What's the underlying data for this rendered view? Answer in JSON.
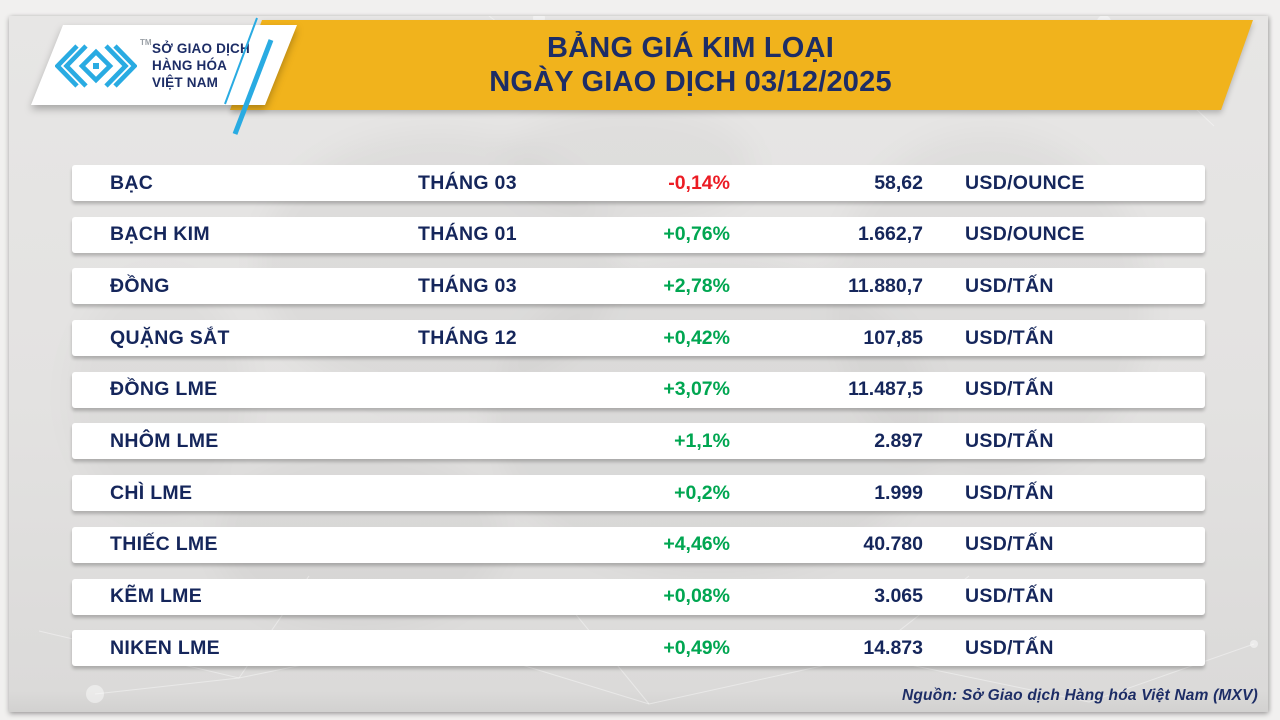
{
  "header": {
    "logo": {
      "org_lines": [
        "SỞ GIAO DỊCH",
        "HÀNG HÓA",
        "VIỆT NAM"
      ],
      "trademark": "TM"
    },
    "title_line1": "BẢNG GIÁ KIM LOẠI",
    "title_line2": "NGÀY GIAO DỊCH 03/12/2025"
  },
  "table": {
    "rows": [
      {
        "name": "BẠC",
        "month": "THÁNG 03",
        "change": "-0,14%",
        "direction": "down",
        "price": "58,62",
        "unit": "USD/OUNCE"
      },
      {
        "name": "BẠCH KIM",
        "month": "THÁNG 01",
        "change": "+0,76%",
        "direction": "up",
        "price": "1.662,7",
        "unit": "USD/OUNCE"
      },
      {
        "name": "ĐỒNG",
        "month": "THÁNG 03",
        "change": "+2,78%",
        "direction": "up",
        "price": "11.880,7",
        "unit": "USD/TẤN"
      },
      {
        "name": "QUẶNG SẮT",
        "month": "THÁNG 12",
        "change": "+0,42%",
        "direction": "up",
        "price": "107,85",
        "unit": "USD/TẤN"
      },
      {
        "name": "ĐỒNG LME",
        "month": "",
        "change": "+3,07%",
        "direction": "up",
        "price": "11.487,5",
        "unit": "USD/TẤN"
      },
      {
        "name": "NHÔM LME",
        "month": "",
        "change": "+1,1%",
        "direction": "up",
        "price": "2.897",
        "unit": "USD/TẤN"
      },
      {
        "name": "CHÌ LME",
        "month": "",
        "change": "+0,2%",
        "direction": "up",
        "price": "1.999",
        "unit": "USD/TẤN"
      },
      {
        "name": "THIẾC LME",
        "month": "",
        "change": "+4,46%",
        "direction": "up",
        "price": "40.780",
        "unit": "USD/TẤN"
      },
      {
        "name": "KẼM LME",
        "month": "",
        "change": "+0,08%",
        "direction": "up",
        "price": "3.065",
        "unit": "USD/TẤN"
      },
      {
        "name": "NIKEN LME",
        "month": "",
        "change": "+0,49%",
        "direction": "up",
        "price": "14.873",
        "unit": "USD/TẤN"
      }
    ]
  },
  "footer": {
    "source": "Nguồn: Sở Giao dịch Hàng hóa Việt Nam (MXV)"
  },
  "colors": {
    "accent_yellow": "#f1b31c",
    "navy": "#1d2d66",
    "row_text_navy": "#15265b",
    "logo_cyan": "#29abe2",
    "up_green": "#00a651",
    "down_red": "#ec1c24",
    "board_gray": "#e3e2e1",
    "row_white": "#ffffff"
  },
  "chart_data": {
    "type": "table",
    "title": "BẢNG GIÁ KIM LOẠI NGÀY GIAO DỊCH 03/12/2025",
    "columns": [
      "commodity",
      "contract_month",
      "change_percent",
      "price",
      "unit"
    ],
    "rows": [
      [
        "BẠC",
        "THÁNG 03",
        "-0,14%",
        "58,62",
        "USD/OUNCE"
      ],
      [
        "BẠCH KIM",
        "THÁNG 01",
        "+0,76%",
        "1.662,7",
        "USD/OUNCE"
      ],
      [
        "ĐỒNG",
        "THÁNG 03",
        "+2,78%",
        "11.880,7",
        "USD/TẤN"
      ],
      [
        "QUẶNG SẮT",
        "THÁNG 12",
        "+0,42%",
        "107,85",
        "USD/TẤN"
      ],
      [
        "ĐỒNG LME",
        "",
        "+3,07%",
        "11.487,5",
        "USD/TẤN"
      ],
      [
        "NHÔM LME",
        "",
        "+1,1%",
        "2.897",
        "USD/TẤN"
      ],
      [
        "CHÌ LME",
        "",
        "+0,2%",
        "1.999",
        "USD/TẤN"
      ],
      [
        "THIẾC LME",
        "",
        "+4,46%",
        "40.780",
        "USD/TẤN"
      ],
      [
        "KẼM LME",
        "",
        "+0,08%",
        "3.065",
        "USD/TẤN"
      ],
      [
        "NIKEN LME",
        "",
        "+0,49%",
        "14.873",
        "USD/TẤN"
      ]
    ],
    "source": "Nguồn: Sở Giao dịch Hàng hóa Việt Nam (MXV)"
  }
}
